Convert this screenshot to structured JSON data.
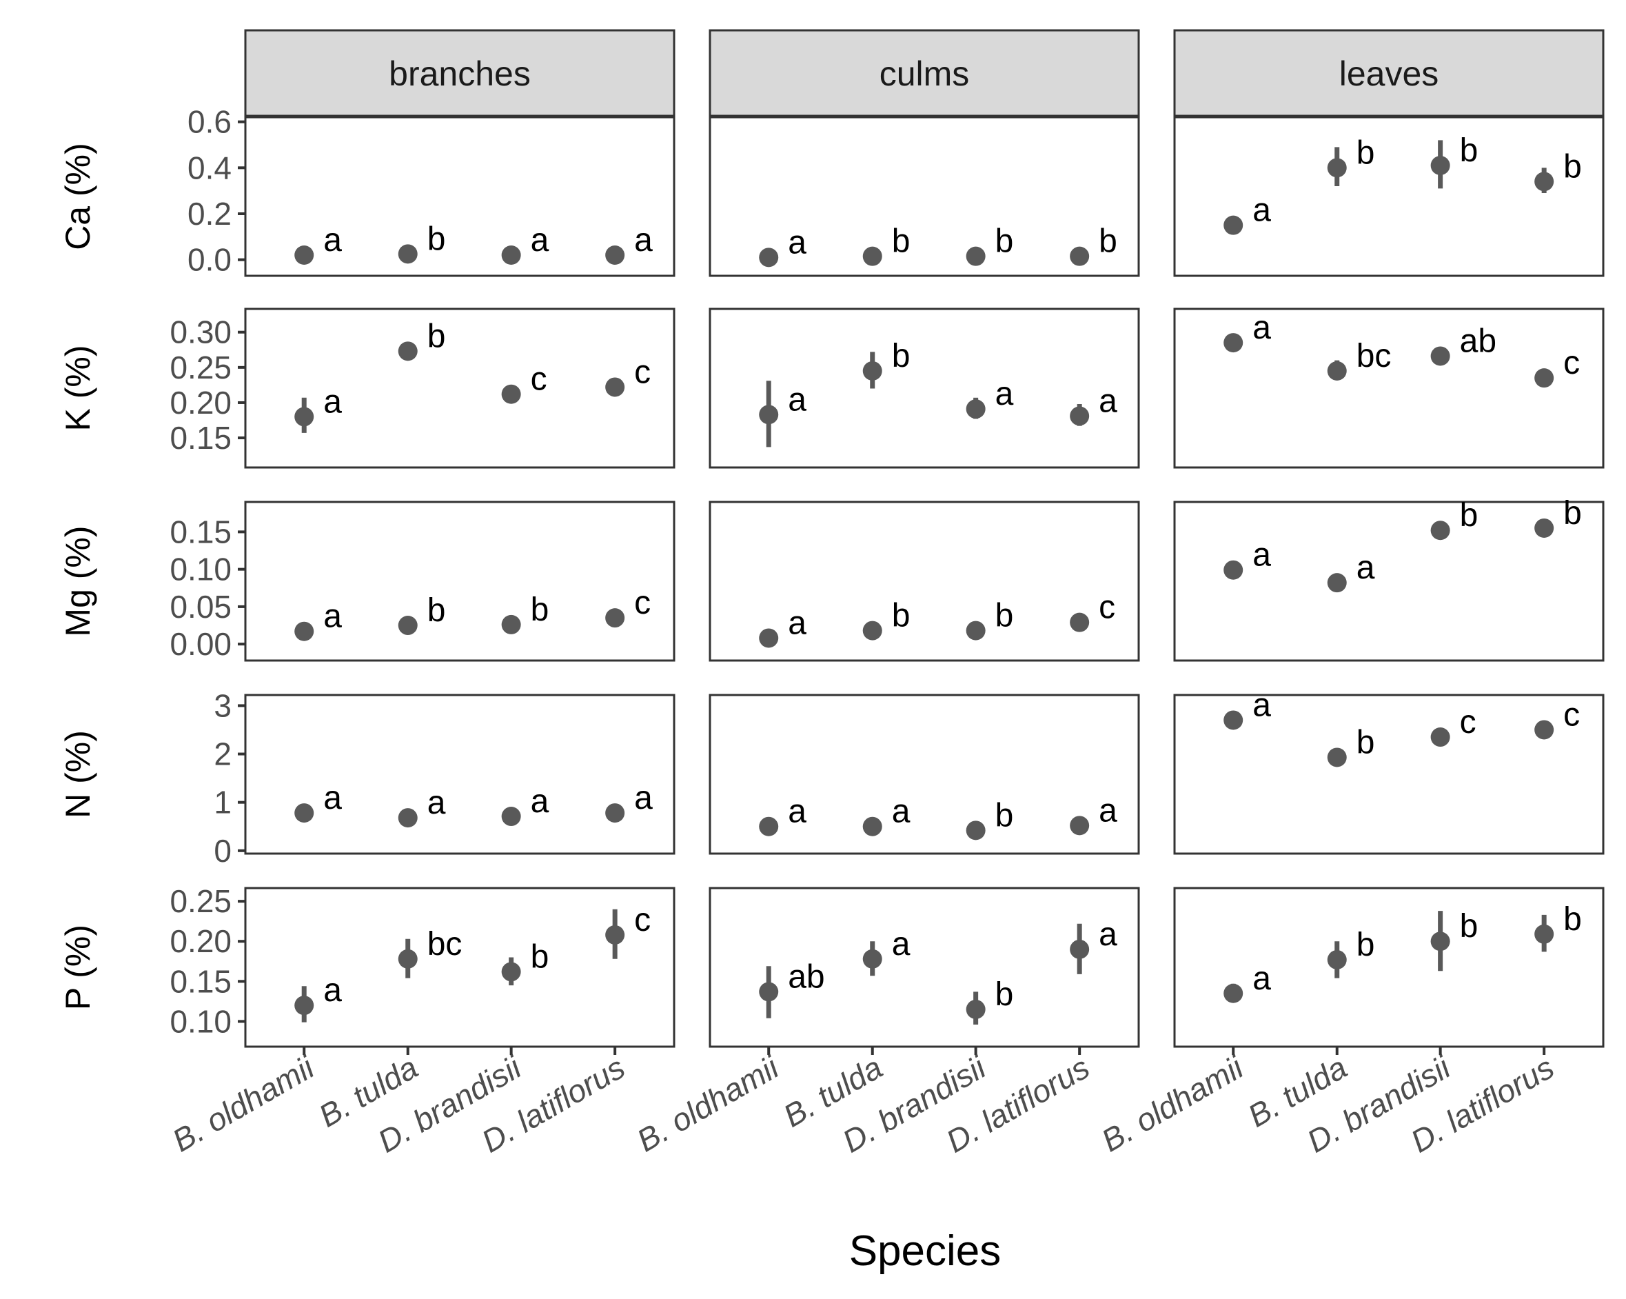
{
  "chart_data": {
    "type": "scatter",
    "subtype": "faceted point-range with significance letters",
    "xlabel": "Species",
    "categories": [
      "B. oldhamii",
      "B. tulda",
      "D. brandisii",
      "D. latiflorus"
    ],
    "facets": [
      "branches",
      "culms",
      "leaves"
    ],
    "colors": {
      "point": "#595959",
      "strip": "#d9d9d9",
      "frame": "#333333"
    },
    "rows": [
      {
        "ylabel": "Ca (%)",
        "ylim": [
          -0.07,
          0.62
        ],
        "ticks": [
          0.0,
          0.2,
          0.4,
          0.6
        ],
        "tick_labels": [
          "0.0",
          "0.2",
          "0.4",
          "0.6"
        ],
        "panels": {
          "branches": {
            "values": [
              0.02,
              0.025,
              0.02,
              0.02
            ],
            "lower": [
              0.018,
              0.022,
              0.018,
              0.018
            ],
            "upper": [
              0.022,
              0.028,
              0.022,
              0.022
            ],
            "letters": [
              "a",
              "b",
              "a",
              "a"
            ]
          },
          "culms": {
            "values": [
              0.01,
              0.015,
              0.015,
              0.015
            ],
            "lower": [
              0.008,
              0.013,
              0.013,
              0.013
            ],
            "upper": [
              0.012,
              0.017,
              0.017,
              0.017
            ],
            "letters": [
              "a",
              "b",
              "b",
              "b"
            ]
          },
          "leaves": {
            "values": [
              0.15,
              0.4,
              0.41,
              0.34
            ],
            "lower": [
              0.14,
              0.32,
              0.31,
              0.29
            ],
            "upper": [
              0.16,
              0.49,
              0.52,
              0.4
            ],
            "letters": [
              "a",
              "b",
              "b",
              "b"
            ]
          }
        }
      },
      {
        "ylabel": "K (%)",
        "ylim": [
          0.108,
          0.333
        ],
        "ticks": [
          0.15,
          0.2,
          0.25,
          0.3
        ],
        "tick_labels": [
          "0.15",
          "0.20",
          "0.25",
          "0.30"
        ],
        "panels": {
          "branches": {
            "values": [
              0.18,
              0.273,
              0.212,
              0.222
            ],
            "lower": [
              0.157,
              0.268,
              0.207,
              0.215
            ],
            "upper": [
              0.207,
              0.279,
              0.218,
              0.23
            ],
            "letters": [
              "a",
              "b",
              "c",
              "c"
            ]
          },
          "culms": {
            "values": [
              0.183,
              0.245,
              0.191,
              0.181
            ],
            "lower": [
              0.137,
              0.22,
              0.177,
              0.167
            ],
            "upper": [
              0.231,
              0.272,
              0.207,
              0.198
            ],
            "letters": [
              "a",
              "b",
              "a",
              "a"
            ]
          },
          "leaves": {
            "values": [
              0.285,
              0.245,
              0.266,
              0.235
            ],
            "lower": [
              0.277,
              0.233,
              0.261,
              0.23
            ],
            "upper": [
              0.292,
              0.26,
              0.272,
              0.24
            ],
            "letters": [
              "a",
              "bc",
              "ab",
              "c"
            ]
          }
        }
      },
      {
        "ylabel": "Mg (%)",
        "ylim": [
          -0.022,
          0.19
        ],
        "ticks": [
          0.0,
          0.05,
          0.1,
          0.15
        ],
        "tick_labels": [
          "0.00",
          "0.05",
          "0.10",
          "0.15"
        ],
        "panels": {
          "branches": {
            "values": [
              0.017,
              0.025,
              0.026,
              0.035
            ],
            "lower": [
              0.015,
              0.023,
              0.024,
              0.033
            ],
            "upper": [
              0.019,
              0.027,
              0.028,
              0.037
            ],
            "letters": [
              "a",
              "b",
              "b",
              "c"
            ]
          },
          "culms": {
            "values": [
              0.008,
              0.018,
              0.018,
              0.029
            ],
            "lower": [
              0.006,
              0.016,
              0.016,
              0.027
            ],
            "upper": [
              0.01,
              0.02,
              0.02,
              0.031
            ],
            "letters": [
              "a",
              "b",
              "b",
              "c"
            ]
          },
          "leaves": {
            "values": [
              0.099,
              0.082,
              0.152,
              0.155
            ],
            "lower": [
              0.096,
              0.079,
              0.149,
              0.152
            ],
            "upper": [
              0.102,
              0.085,
              0.155,
              0.158
            ],
            "letters": [
              "a",
              "a",
              "b",
              "b"
            ]
          }
        }
      },
      {
        "ylabel": "N (%)",
        "ylim": [
          -0.06,
          3.22
        ],
        "ticks": [
          0,
          1,
          2,
          3
        ],
        "tick_labels": [
          "0",
          "1",
          "2",
          "3"
        ],
        "panels": {
          "branches": {
            "values": [
              0.78,
              0.68,
              0.71,
              0.78
            ],
            "lower": [
              0.75,
              0.65,
              0.68,
              0.75
            ],
            "upper": [
              0.81,
              0.71,
              0.74,
              0.81
            ],
            "letters": [
              "a",
              "a",
              "a",
              "a"
            ]
          },
          "culms": {
            "values": [
              0.5,
              0.5,
              0.42,
              0.52
            ],
            "lower": [
              0.47,
              0.47,
              0.39,
              0.49
            ],
            "upper": [
              0.53,
              0.53,
              0.45,
              0.55
            ],
            "letters": [
              "a",
              "a",
              "b",
              "a"
            ]
          },
          "leaves": {
            "values": [
              2.7,
              1.93,
              2.35,
              2.5
            ],
            "lower": [
              2.66,
              1.89,
              2.31,
              2.46
            ],
            "upper": [
              2.74,
              1.97,
              2.39,
              2.54
            ],
            "letters": [
              "a",
              "b",
              "c",
              "c"
            ]
          }
        }
      },
      {
        "ylabel": "P (%)",
        "ylim": [
          0.0685,
          0.2665
        ],
        "ticks": [
          0.1,
          0.15,
          0.2,
          0.25
        ],
        "tick_labels": [
          "0.10",
          "0.15",
          "0.20",
          "0.25"
        ],
        "panels": {
          "branches": {
            "values": [
              0.12,
              0.178,
              0.162,
              0.208
            ],
            "lower": [
              0.099,
              0.154,
              0.145,
              0.178
            ],
            "upper": [
              0.144,
              0.203,
              0.18,
              0.24
            ],
            "letters": [
              "a",
              "bc",
              "b",
              "c"
            ]
          },
          "culms": {
            "values": [
              0.137,
              0.178,
              0.115,
              0.19
            ],
            "lower": [
              0.104,
              0.157,
              0.096,
              0.159
            ],
            "upper": [
              0.169,
              0.2,
              0.137,
              0.222
            ],
            "letters": [
              "ab",
              "a",
              "b",
              "a"
            ]
          },
          "leaves": {
            "values": [
              0.135,
              0.177,
              0.2,
              0.209
            ],
            "lower": [
              0.125,
              0.154,
              0.163,
              0.187
            ],
            "upper": [
              0.147,
              0.2,
              0.238,
              0.233
            ],
            "letters": [
              "a",
              "b",
              "b",
              "b"
            ]
          }
        }
      }
    ]
  }
}
